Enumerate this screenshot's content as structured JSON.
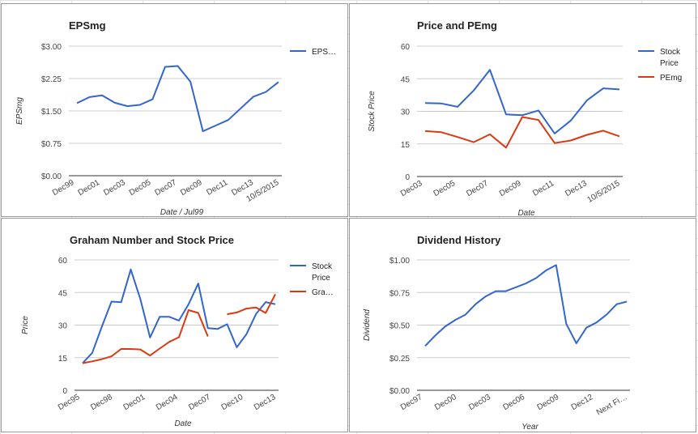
{
  "chart_data": [
    {
      "type": "line",
      "title": "EPSmg",
      "xlabel": "Date / Jul99",
      "ylabel": "EPSmg",
      "ylim": [
        0,
        3
      ],
      "yticks": [
        "$0.00",
        "$0.75",
        "$1.50",
        "$2.25",
        "$3.00"
      ],
      "x_ticks": [
        "Dec99",
        "Dec01",
        "Dec03",
        "Dec05",
        "Dec07",
        "Dec09",
        "Dec11",
        "Dec13",
        "10/5/2015"
      ],
      "legend": "right",
      "series": [
        {
          "name": "EPS…",
          "color": "#3366cc",
          "values": [
            1.68,
            1.82,
            1.86,
            1.69,
            1.61,
            1.64,
            1.77,
            2.52,
            2.54,
            2.18,
            1.03,
            1.16,
            1.29,
            1.56,
            1.83,
            1.94,
            2.17
          ]
        }
      ]
    },
    {
      "type": "line",
      "title": "Price and PEmg",
      "xlabel": "Date",
      "ylabel": "Stock Price",
      "ylim": [
        0,
        60
      ],
      "yticks": [
        "0",
        "15",
        "30",
        "45",
        "60"
      ],
      "x_ticks": [
        "Dec03",
        "Dec05",
        "Dec07",
        "Dec09",
        "Dec11",
        "Dec13",
        "10/5/2015"
      ],
      "legend": "right",
      "series": [
        {
          "name": "Stock Price",
          "color": "#3366cc",
          "values": [
            33.8,
            33.6,
            32.1,
            39.6,
            49.1,
            28.6,
            28.2,
            30.4,
            19.8,
            25.8,
            35.1,
            40.6,
            40.1
          ]
        },
        {
          "name": "PEmg",
          "color": "#dc3912",
          "values": [
            20.9,
            20.4,
            18.2,
            15.8,
            19.4,
            13.3,
            27.4,
            26.0,
            15.4,
            16.6,
            19.2,
            21.1,
            18.5
          ]
        }
      ]
    },
    {
      "type": "line",
      "title": "Graham Number and Stock Price",
      "xlabel": "Date",
      "ylabel": "Price",
      "ylim": [
        0,
        60
      ],
      "yticks": [
        "0",
        "15",
        "30",
        "45",
        "60"
      ],
      "x_ticks": [
        "Dec95",
        "Dec98",
        "Dec01",
        "Dec04",
        "Dec07",
        "Dec10",
        "Dec13"
      ],
      "legend": "right",
      "series": [
        {
          "name": "Stock Price",
          "color": "#3366cc",
          "values": [
            12.5,
            17.2,
            29.3,
            40.8,
            40.5,
            55.6,
            41.9,
            24.3,
            33.8,
            33.8,
            32.1,
            39.6,
            49.1,
            28.6,
            28.2,
            30.4,
            19.8,
            25.8,
            35.1,
            40.6,
            39.6
          ]
        },
        {
          "name": "Gra…",
          "color": "#dc3912",
          "values": [
            12.5,
            13.3,
            14.3,
            15.6,
            19.0,
            19.0,
            18.8,
            16.0,
            19.2,
            22.3,
            24.4,
            36.9,
            35.6,
            24.8,
            null,
            35.0,
            35.8,
            37.6,
            38.1,
            35.6,
            44.2
          ]
        }
      ]
    },
    {
      "type": "line",
      "title": "Dividend History",
      "xlabel": "Year",
      "ylabel": "Dividend",
      "ylim": [
        0,
        1
      ],
      "yticks": [
        "$0.00",
        "$0.25",
        "$0.50",
        "$0.75",
        "$1.00"
      ],
      "x_ticks": [
        "Dec97",
        "Dec00",
        "Dec03",
        "Dec06",
        "Dec09",
        "Dec12",
        "Next Fi…"
      ],
      "legend": "none",
      "series": [
        {
          "name": "",
          "color": "#3366cc",
          "values": [
            0.34,
            0.42,
            0.49,
            0.54,
            0.58,
            0.66,
            0.72,
            0.76,
            0.76,
            0.79,
            0.82,
            0.86,
            0.92,
            0.96,
            0.51,
            0.36,
            0.48,
            0.52,
            0.58,
            0.66,
            0.68
          ]
        }
      ]
    }
  ]
}
